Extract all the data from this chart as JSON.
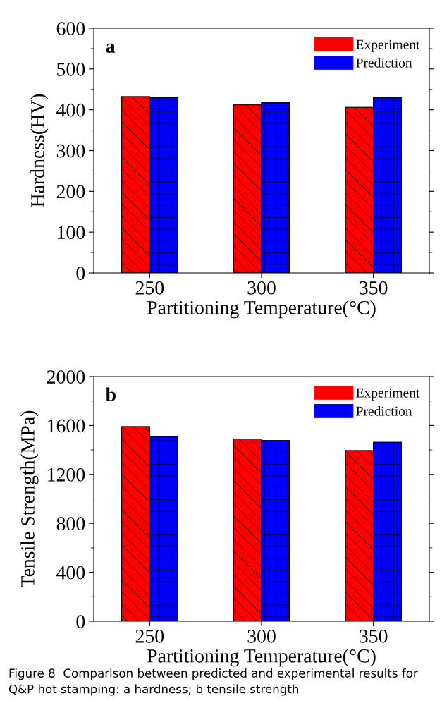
{
  "chart_data": [
    {
      "type": "bar",
      "title": "a",
      "categories": [
        "250",
        "300",
        "350"
      ],
      "xlabel": "Partitioning Temperature(°C)",
      "ylabel": "Hardness(HV)",
      "ylim": [
        0,
        600
      ],
      "yticks": [
        0,
        100,
        200,
        300,
        400,
        500,
        600
      ],
      "legend": "top right",
      "grid": false,
      "series": [
        {
          "name": "Experiment",
          "color": "#ff0000",
          "values": [
            432,
            412,
            406
          ]
        },
        {
          "name": "Prediction",
          "color": "#0000ff",
          "values": [
            430,
            417,
            430
          ]
        }
      ]
    },
    {
      "type": "bar",
      "title": "b",
      "categories": [
        "250",
        "300",
        "350"
      ],
      "xlabel": "Partitioning Temperature(°C)",
      "ylabel": "Tensile Strength(MPa)",
      "ylim": [
        0,
        2000
      ],
      "yticks": [
        0,
        400,
        800,
        1200,
        1600,
        2000
      ],
      "legend": "top right",
      "grid": false,
      "series": [
        {
          "name": "Experiment",
          "color": "#ff0000",
          "values": [
            1591,
            1490,
            1395
          ]
        },
        {
          "name": "Prediction",
          "color": "#0000ff",
          "values": [
            1508,
            1476,
            1462
          ]
        }
      ],
      "annotations": [
        "Figure 8  Comparison between predicted and experimental results for Q&P hot stamping: a hardness; b tensile strength"
      ]
    }
  ]
}
